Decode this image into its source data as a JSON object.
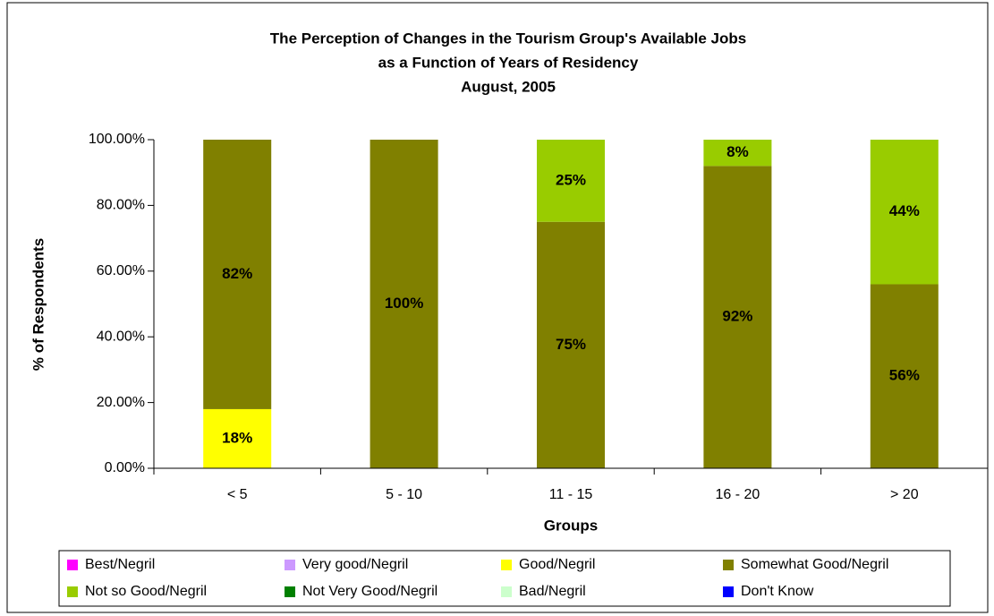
{
  "chart_data": {
    "type": "stacked_bar",
    "title": "The Perception of Changes in the Tourism Group's Available Jobs",
    "subtitle": "as a Function of Years of Residency",
    "date": "August, 2005",
    "x_label": "Groups",
    "y_label": "% of Respondents",
    "categories": [
      "< 5",
      "5 - 10",
      "11 - 15",
      "16 - 20",
      "> 20"
    ],
    "series": [
      {
        "name": "Best/Negril",
        "color": "#ff00ff",
        "values": [
          null,
          null,
          null,
          null,
          null
        ]
      },
      {
        "name": "Very good/Negril",
        "color": "#cc99ff",
        "values": [
          null,
          null,
          null,
          null,
          null
        ]
      },
      {
        "name": "Good/Negril",
        "color": "#ffff00",
        "values": [
          18,
          null,
          null,
          null,
          null
        ],
        "value_labels": [
          "18%",
          null,
          null,
          null,
          null
        ]
      },
      {
        "name": "Somewhat Good/Negril",
        "color": "#808000",
        "values": [
          82,
          100,
          75,
          92,
          56
        ],
        "value_labels": [
          "82%",
          "100%",
          "75%",
          "92%",
          "56%"
        ]
      },
      {
        "name": "Not so Good/Negril",
        "color": "#99cc00",
        "values": [
          null,
          null,
          25,
          8,
          44
        ],
        "value_labels": [
          null,
          null,
          "25%",
          "8%",
          "44%"
        ]
      },
      {
        "name": "Not Very Good/Negril",
        "color": "#008000",
        "values": [
          null,
          null,
          null,
          null,
          null
        ]
      },
      {
        "name": "Bad/Negril",
        "color": "#ccffcc",
        "values": [
          null,
          null,
          null,
          null,
          null
        ]
      },
      {
        "name": "Don't Know",
        "color": "#0000ff",
        "values": [
          null,
          null,
          null,
          null,
          null
        ]
      }
    ],
    "ylim": [
      0,
      100
    ],
    "yticks": [
      {
        "value": 0,
        "label": "0.00%"
      },
      {
        "value": 20,
        "label": "20.00%"
      },
      {
        "value": 40,
        "label": "40.00%"
      },
      {
        "value": 60,
        "label": "60.00%"
      },
      {
        "value": 80,
        "label": "80.00%"
      },
      {
        "value": 100,
        "label": "100.00%"
      }
    ],
    "grid": false,
    "legend": "bottom"
  }
}
